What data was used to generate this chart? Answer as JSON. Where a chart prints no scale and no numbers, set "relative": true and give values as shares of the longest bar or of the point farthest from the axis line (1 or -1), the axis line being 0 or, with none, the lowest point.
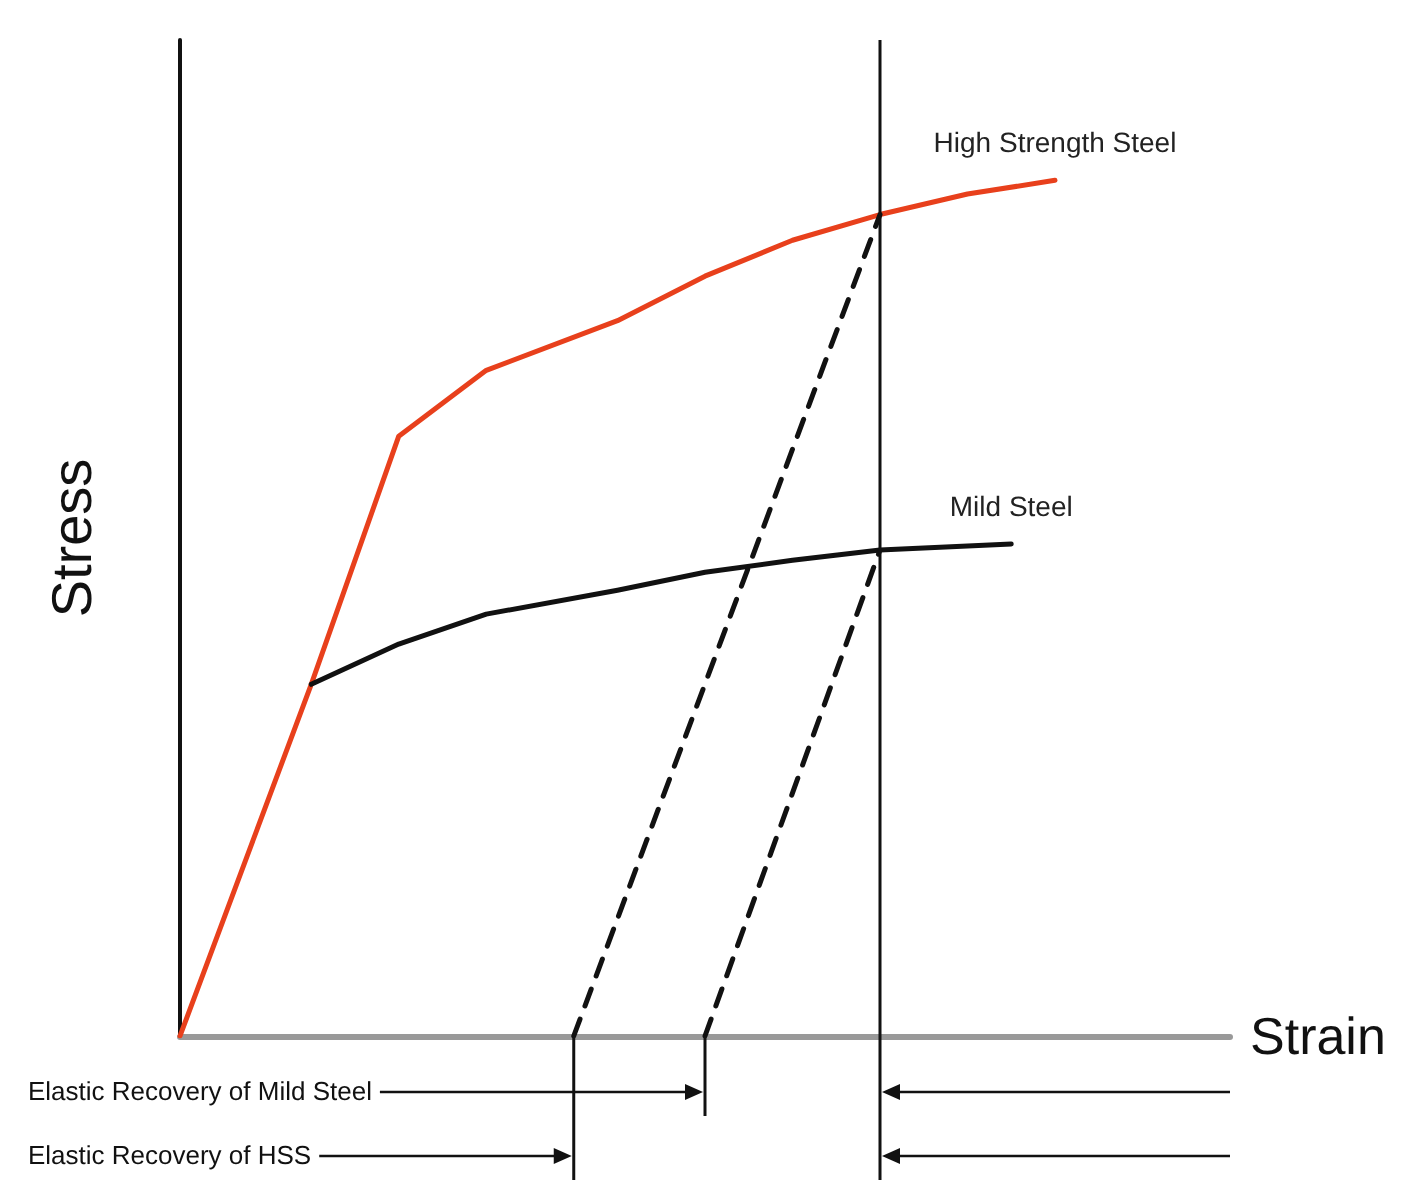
{
  "chart_data": {
    "type": "line",
    "relative": true,
    "xlabel": "Strain",
    "ylabel": "Stress",
    "legend": false,
    "grid": false,
    "marker": "none",
    "categories": [
      null,
      null,
      null,
      null,
      null,
      null,
      null,
      null,
      null,
      null,
      null,
      null,
      null,
      null,
      null,
      null,
      null,
      null,
      null,
      null,
      null,
      null,
      null,
      null,
      null
    ],
    "series": [
      {
        "name": "High Strength Steel",
        "color": "#e8401c",
        "line_style": "solid",
        "values": [
          0,
          null,
          null,
          0.411,
          null,
          0.701,
          null,
          0.778,
          null,
          null,
          0.836,
          null,
          0.888,
          null,
          0.93,
          null,
          0.96,
          null,
          0.984,
          null,
          1,
          null,
          null,
          null,
          null
        ]
      },
      {
        "name": "Mild Steel",
        "color": "#111111",
        "line_style": "solid",
        "values": [
          null,
          null,
          null,
          0.411,
          null,
          0.458,
          null,
          0.493,
          null,
          null,
          0.521,
          null,
          0.542,
          null,
          0.556,
          null,
          0.568,
          null,
          null,
          0.575,
          null,
          null,
          null,
          null,
          null
        ]
      },
      {
        "color": "#111111",
        "line_style": "dashed",
        "values": [
          null,
          null,
          null,
          null,
          null,
          null,
          null,
          null,
          null,
          null,
          null,
          null,
          0,
          null,
          null,
          null,
          0.568,
          null,
          null,
          null,
          null,
          null,
          null,
          null,
          null
        ]
      },
      {
        "color": "#111111",
        "line_style": "dashed",
        "values": [
          null,
          null,
          null,
          null,
          null,
          null,
          null,
          null,
          null,
          0,
          null,
          null,
          null,
          null,
          null,
          null,
          0.96,
          null,
          null,
          null,
          null,
          null,
          null,
          null,
          null
        ]
      }
    ],
    "annotations": [
      "Elastic Recovery of Mild Steel",
      "Elastic Recovery of HSS"
    ]
  }
}
